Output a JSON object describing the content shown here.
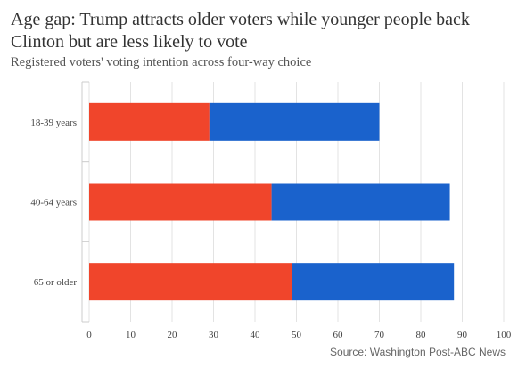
{
  "chart_data": {
    "type": "bar",
    "orientation": "horizontal",
    "stacked": true,
    "title": "Age gap: Trump attracts older voters while younger people back Clinton but are less likely to vote",
    "subtitle": "Registered voters' voting intention across four-way choice",
    "source": "Source: Washington Post-ABC News",
    "categories": [
      "18-39 years",
      "40-64 years",
      "65 or older"
    ],
    "series": [
      {
        "color": "#f0452b",
        "values": [
          29,
          44,
          49
        ]
      },
      {
        "color": "#1a62cc",
        "values": [
          41,
          43,
          39
        ]
      }
    ],
    "xlim": [
      0,
      100
    ],
    "xticks": [
      "0",
      "10",
      "20",
      "30",
      "40",
      "50",
      "60",
      "70",
      "80",
      "90",
      "100"
    ],
    "grid": true
  }
}
